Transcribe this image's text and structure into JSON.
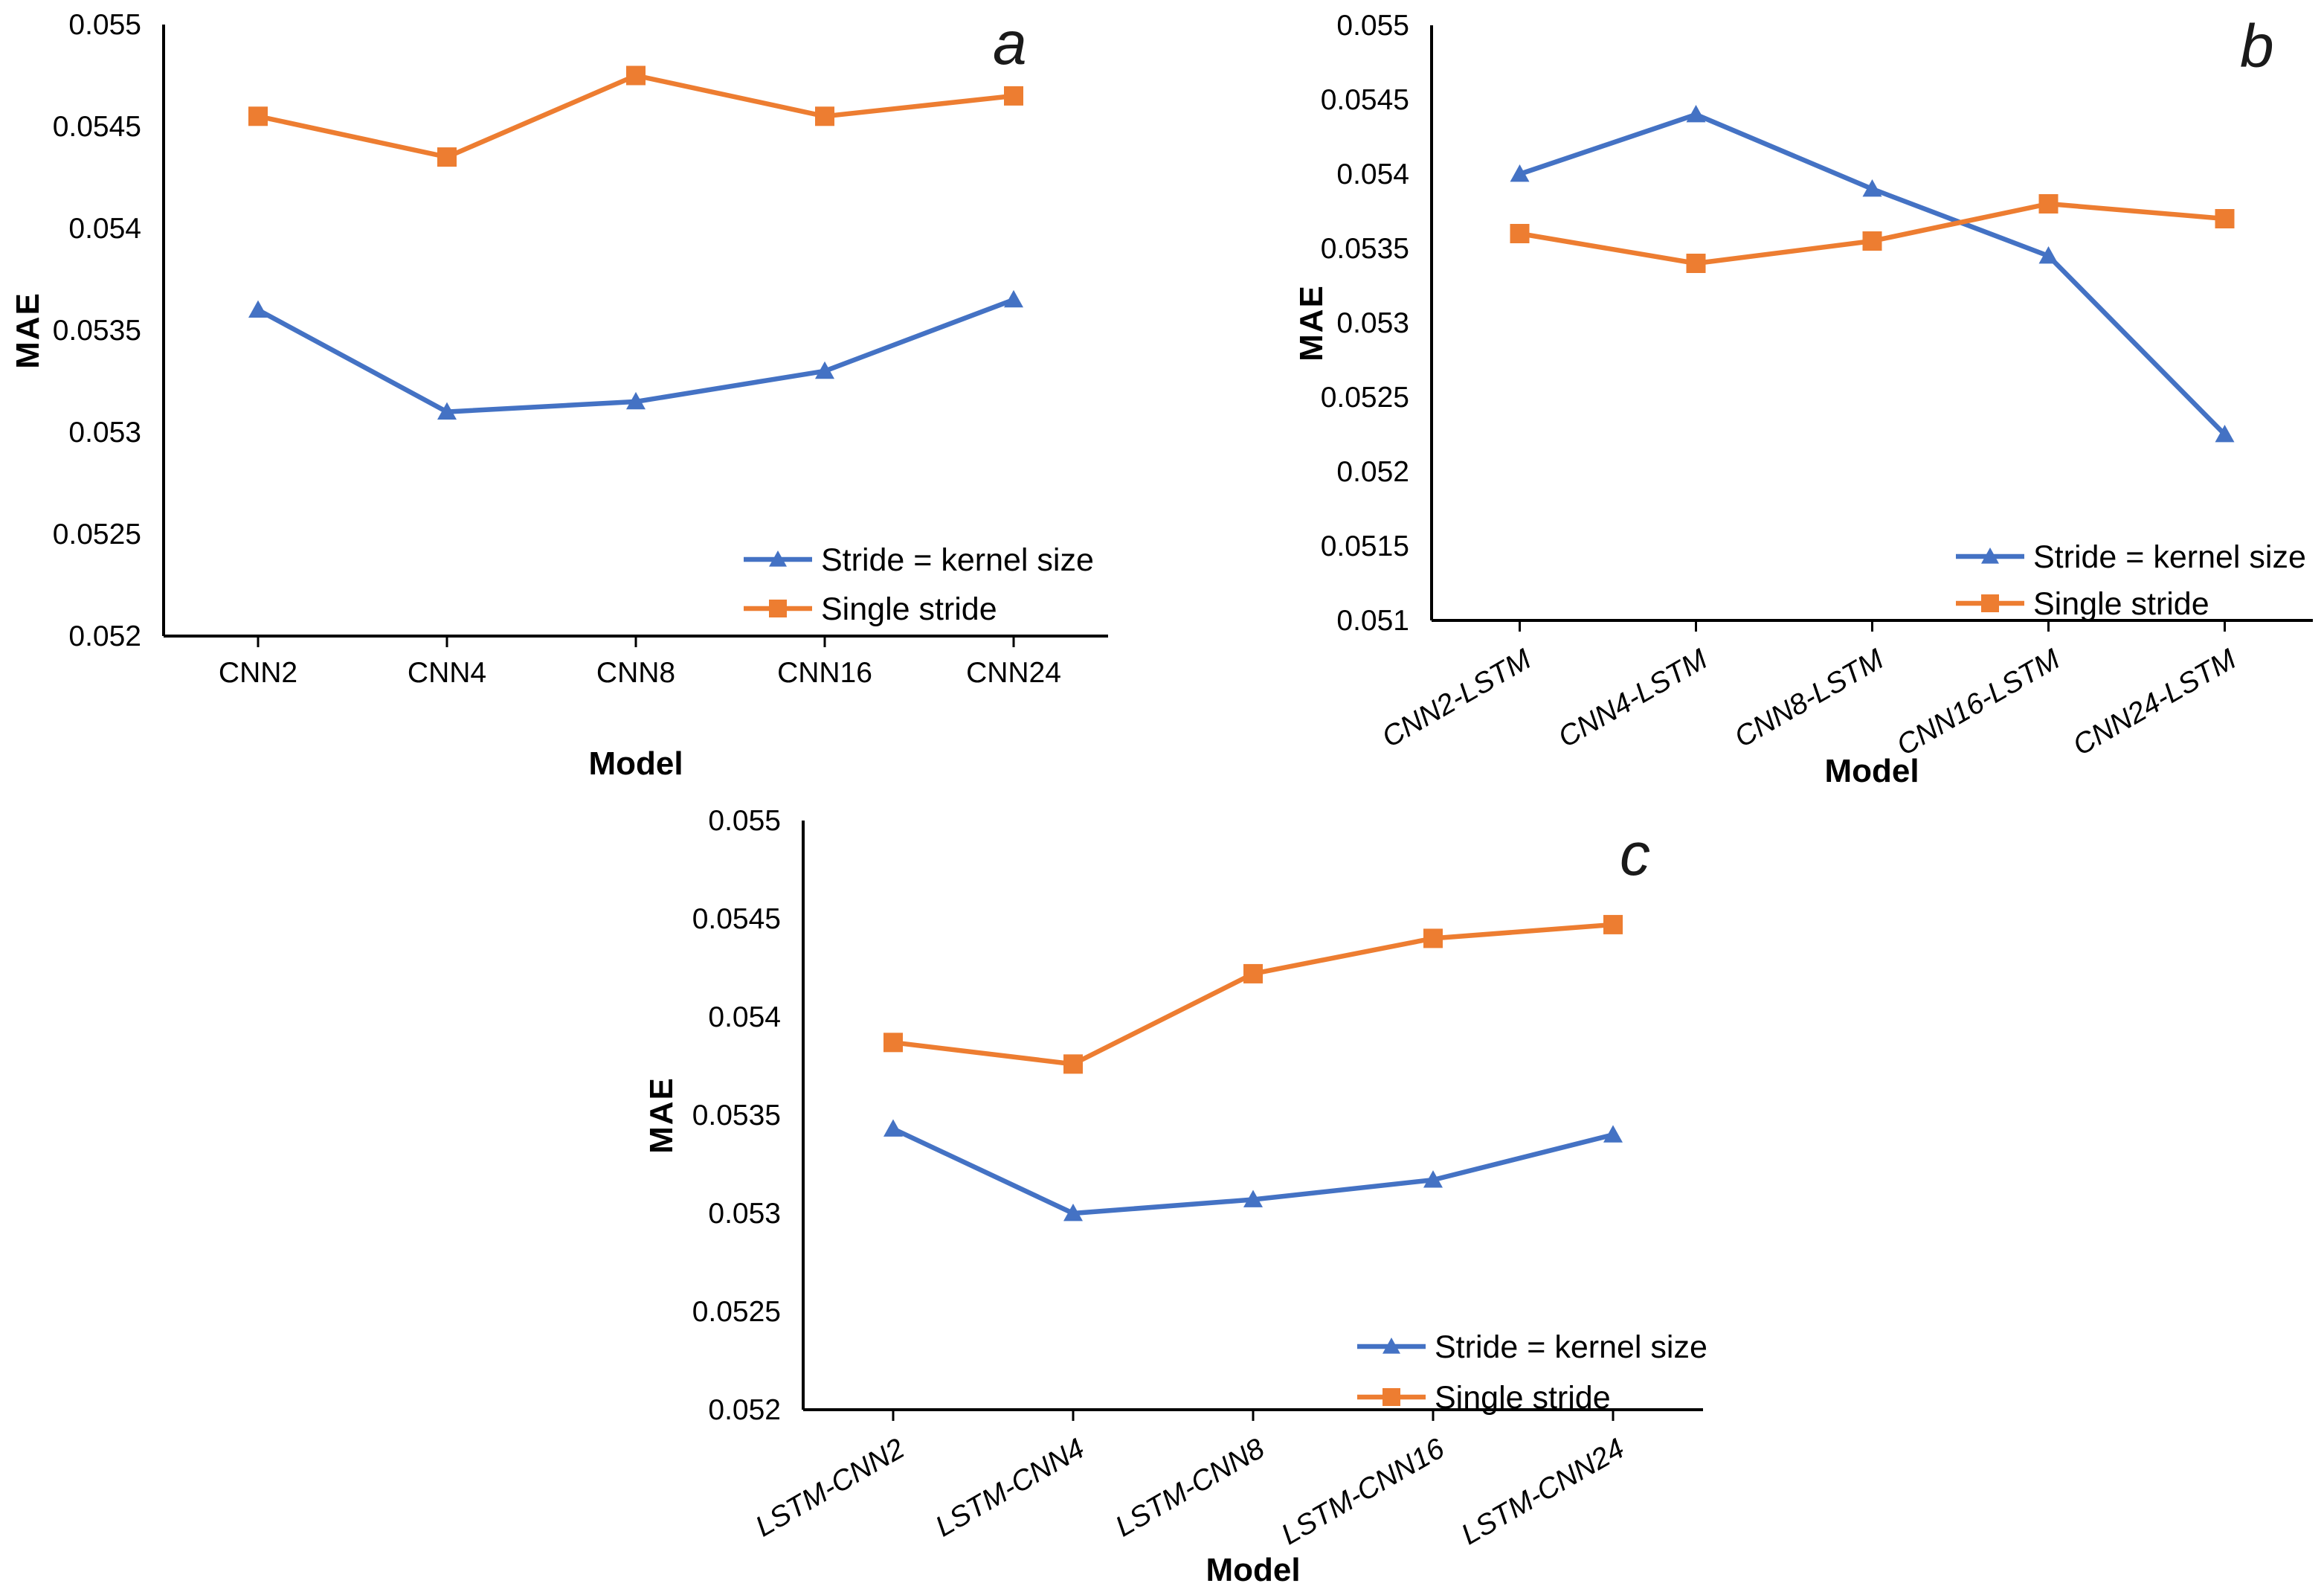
{
  "chart_data": [
    {
      "type": "line",
      "panel_label": "a",
      "xlabel": "Model",
      "ylabel": "MAE",
      "categories": [
        "CNN2",
        "CNN4",
        "CNN8",
        "CNN16",
        "CNN24"
      ],
      "series": [
        {
          "name": "Stride = kernel size",
          "color": "#4472C4",
          "marker": "triangle",
          "values": [
            0.0536,
            0.0531,
            0.05315,
            0.0533,
            0.05365
          ]
        },
        {
          "name": "Single stride",
          "color": "#ED7D31",
          "marker": "square",
          "values": [
            0.05455,
            0.05435,
            0.05475,
            0.05455,
            0.05465
          ]
        }
      ],
      "ylim": [
        0.052,
        0.055
      ],
      "ytick_values": [
        0.055,
        0.0545,
        0.054,
        0.0535,
        0.053,
        0.0525,
        0.052
      ],
      "ytick_labels": [
        "0.055",
        "0.0545",
        "0.054",
        "0.0535",
        "0.053",
        "0.0525",
        "0.052"
      ],
      "x_label_rotation": 0,
      "grid": false,
      "legend_position": "inside-bottom-right"
    },
    {
      "type": "line",
      "panel_label": "b",
      "xlabel": "Model",
      "ylabel": "MAE",
      "categories": [
        "CNN2-LSTM",
        "CNN4-LSTM",
        "CNN8-LSTM",
        "CNN16-LSTM",
        "CNN24-LSTM"
      ],
      "series": [
        {
          "name": "Stride = kernel size",
          "color": "#4472C4",
          "marker": "triangle",
          "values": [
            0.054,
            0.0544,
            0.0539,
            0.05345,
            0.05225
          ]
        },
        {
          "name": "Single stride",
          "color": "#ED7D31",
          "marker": "square",
          "values": [
            0.0536,
            0.0534,
            0.05355,
            0.0538,
            0.0537
          ]
        }
      ],
      "ylim": [
        0.051,
        0.055
      ],
      "ytick_values": [
        0.055,
        0.0545,
        0.054,
        0.0535,
        0.053,
        0.0525,
        0.052,
        0.0515,
        0.051
      ],
      "ytick_labels": [
        "0.055",
        "0.0545",
        "0.054",
        "0.0535",
        "0.053",
        "0.0525",
        "0.052",
        "0.0515",
        "0.051"
      ],
      "x_label_rotation": -30,
      "grid": false,
      "legend_position": "inside-bottom-right"
    },
    {
      "type": "line",
      "panel_label": "c",
      "xlabel": "Model",
      "ylabel": "MAE",
      "categories": [
        "LSTM-CNN2",
        "LSTM-CNN4",
        "LSTM-CNN8",
        "LSTM-CNN16",
        "LSTM-CNN24"
      ],
      "series": [
        {
          "name": "Stride = kernel size",
          "color": "#4472C4",
          "marker": "triangle",
          "values": [
            0.05343,
            0.053,
            0.05307,
            0.05317,
            0.0534
          ]
        },
        {
          "name": "Single stride",
          "color": "#ED7D31",
          "marker": "square",
          "values": [
            0.05387,
            0.05376,
            0.05422,
            0.0544,
            0.05447
          ]
        }
      ],
      "ylim": [
        0.052,
        0.055
      ],
      "ytick_values": [
        0.055,
        0.0545,
        0.054,
        0.0535,
        0.053,
        0.0525,
        0.052
      ],
      "ytick_labels": [
        "0.055",
        "0.0545",
        "0.054",
        "0.0535",
        "0.053",
        "0.0525",
        "0.052"
      ],
      "x_label_rotation": -30,
      "grid": false,
      "legend_position": "inside-bottom-right"
    }
  ]
}
